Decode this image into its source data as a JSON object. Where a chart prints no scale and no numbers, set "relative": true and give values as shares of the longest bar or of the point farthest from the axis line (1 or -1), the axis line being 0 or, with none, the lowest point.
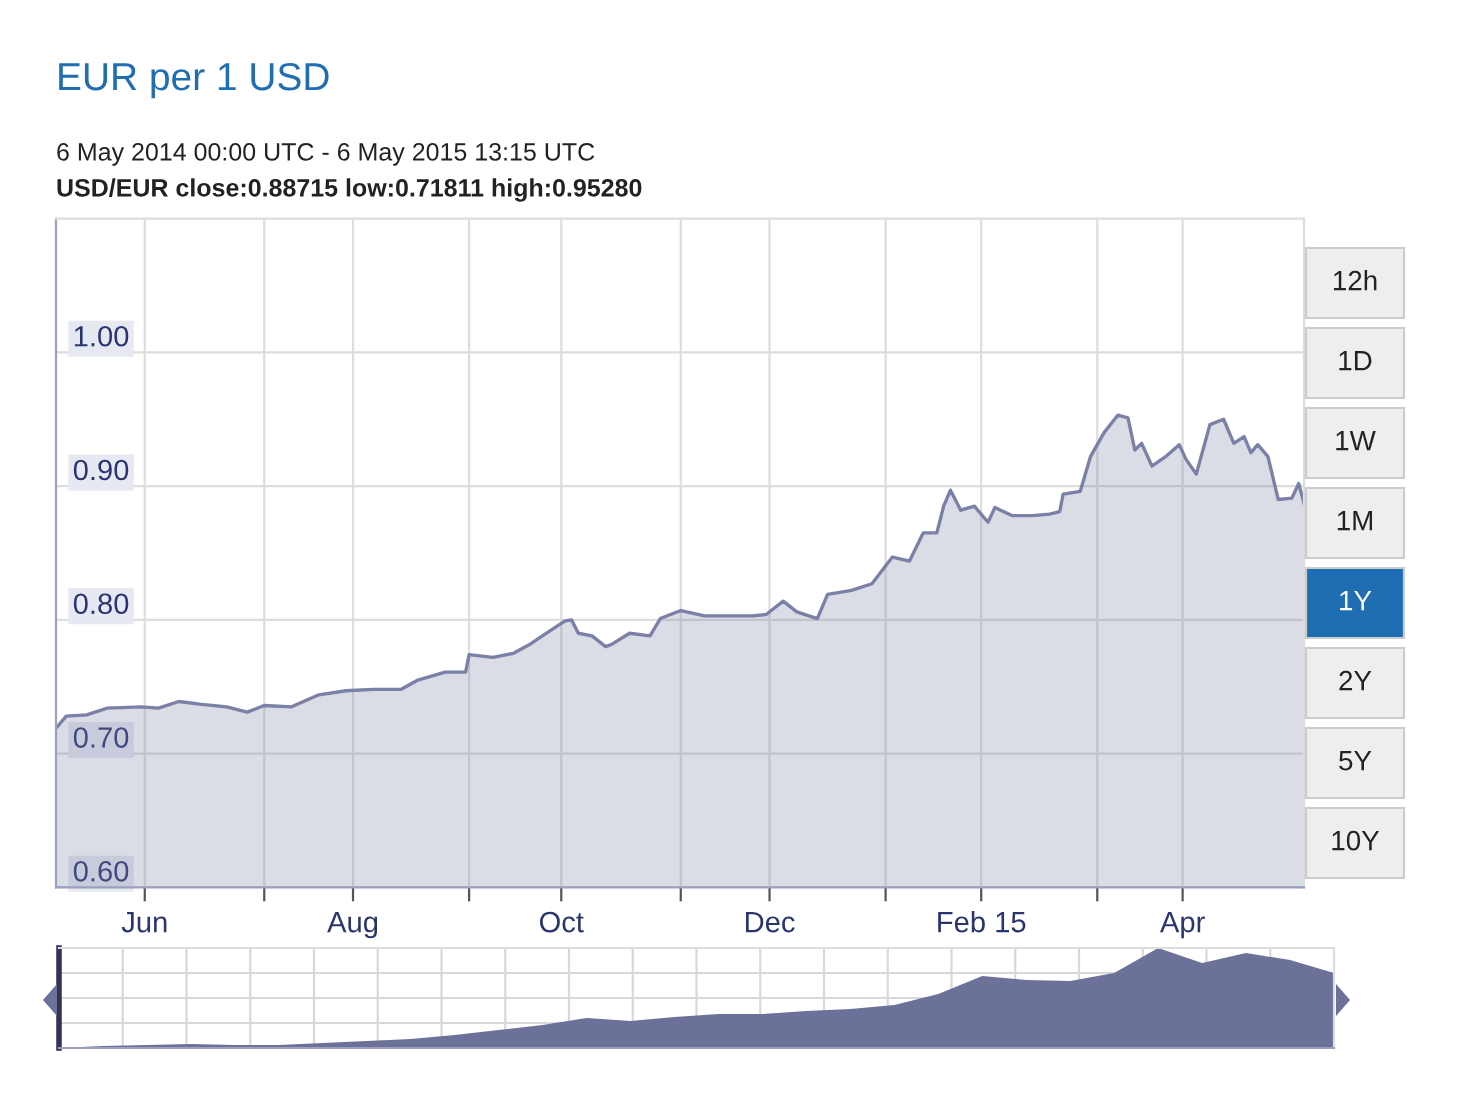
{
  "chart_data": [
    {
      "type": "area",
      "title": "EUR per 1 USD",
      "subtitle": "6 May 2014 00:00 UTC - 6 May 2015 13:15 UTC",
      "annotations": [
        "USD/EUR close:0.88715 low:0.71811 high:0.95280",
        "12h",
        "1D",
        "1W",
        "1M",
        "1Y",
        "2Y",
        "5Y",
        "10Y"
      ],
      "x": [
        "2014-05-06",
        "2014-05-09",
        "2014-05-15",
        "2014-05-21",
        "2014-05-31",
        "2014-06-05",
        "2014-06-11",
        "2014-06-17",
        "2014-06-25",
        "2014-07-01",
        "2014-07-06",
        "2014-07-14",
        "2014-07-22",
        "2014-07-30",
        "2014-08-07",
        "2014-08-15",
        "2014-08-20",
        "2014-08-28",
        "2014-09-03",
        "2014-09-04",
        "2014-09-11",
        "2014-09-17",
        "2014-09-22",
        "2014-09-26",
        "2014-10-02",
        "2014-10-04",
        "2014-10-06",
        "2014-10-10",
        "2014-10-14",
        "2014-10-16",
        "2014-10-21",
        "2014-10-27",
        "2014-10-30",
        "2014-11-05",
        "2014-11-12",
        "2014-11-26",
        "2014-11-30",
        "2014-12-05",
        "2014-12-09",
        "2014-12-15",
        "2014-12-18",
        "2014-12-25",
        "2014-12-31",
        "2015-01-06",
        "2015-01-11",
        "2015-01-15",
        "2015-01-19",
        "2015-01-21",
        "2015-01-23",
        "2015-01-26",
        "2015-01-30",
        "2015-02-03",
        "2015-02-05",
        "2015-02-10",
        "2015-02-16",
        "2015-02-21",
        "2015-02-24",
        "2015-02-25",
        "2015-03-02",
        "2015-03-05",
        "2015-03-09",
        "2015-03-13",
        "2015-03-16",
        "2015-03-18",
        "2015-03-20",
        "2015-03-23",
        "2015-03-27",
        "2015-03-31",
        "2015-04-02",
        "2015-04-05",
        "2015-04-09",
        "2015-04-13",
        "2015-04-16",
        "2015-04-19",
        "2015-04-21",
        "2015-04-23",
        "2015-04-26",
        "2015-04-29",
        "2015-05-03",
        "2015-05-05",
        "2015-05-06T13:15"
      ],
      "series": [
        {
          "color": "#7a80a6",
          "values": [
            0.719,
            0.728,
            0.729,
            0.734,
            0.735,
            0.734,
            0.739,
            0.737,
            0.735,
            0.731,
            0.736,
            0.735,
            0.744,
            0.747,
            0.748,
            0.748,
            0.755,
            0.761,
            0.761,
            0.774,
            0.772,
            0.775,
            0.782,
            0.789,
            0.799,
            0.8,
            0.79,
            0.788,
            0.78,
            0.782,
            0.79,
            0.788,
            0.801,
            0.807,
            0.803,
            0.803,
            0.804,
            0.814,
            0.806,
            0.801,
            0.819,
            0.822,
            0.827,
            0.847,
            0.844,
            0.865,
            0.865,
            0.885,
            0.897,
            0.882,
            0.885,
            0.873,
            0.884,
            0.878,
            0.878,
            0.879,
            0.881,
            0.894,
            0.896,
            0.922,
            0.94,
            0.953,
            0.951,
            0.927,
            0.932,
            0.915,
            0.922,
            0.931,
            0.92,
            0.909,
            0.946,
            0.95,
            0.932,
            0.937,
            0.925,
            0.931,
            0.922,
            0.89,
            0.891,
            0.902,
            0.887
          ]
        }
      ],
      "xlim": [
        "2014-05-06",
        "2015-05-06T13:15"
      ],
      "xticks": [
        {
          "value": "2014-06-01",
          "label": "Jun"
        },
        {
          "value": "2014-07-06",
          "label": null
        },
        {
          "value": "2014-08-01",
          "label": "Aug"
        },
        {
          "value": "2014-09-04",
          "label": null
        },
        {
          "value": "2014-10-01",
          "label": "Oct"
        },
        {
          "value": "2014-11-05",
          "label": null
        },
        {
          "value": "2014-12-01",
          "label": "Dec"
        },
        {
          "value": "2015-01-04",
          "label": null
        },
        {
          "value": "2015-02-01",
          "label": "Feb 15"
        },
        {
          "value": "2015-03-07",
          "label": null
        },
        {
          "value": "2015-04-01",
          "label": "Apr"
        }
      ],
      "ylim": [
        0.6,
        1.1
      ],
      "yticks": [
        {
          "value": 0.6,
          "label": "0.60"
        },
        {
          "value": 0.7,
          "label": "0.70"
        },
        {
          "value": 0.8,
          "label": "0.80"
        },
        {
          "value": 0.9,
          "label": "0.90"
        },
        {
          "value": 1.0,
          "label": "1.00"
        }
      ],
      "grid": true
    },
    {
      "type": "area",
      "relative": true,
      "tick_labels": false,
      "grid": true,
      "categories": [
        null,
        null,
        null,
        null,
        null,
        null,
        null,
        null,
        null,
        null,
        null,
        null,
        null,
        null,
        null,
        null,
        null,
        null,
        null,
        null,
        null,
        null,
        null,
        null,
        null,
        null,
        null,
        null,
        null,
        null
      ],
      "series": [
        {
          "color": "#6b7199",
          "values": [
            0,
            0.02,
            0.03,
            0.04,
            0.03,
            0.03,
            0.05,
            0.07,
            0.09,
            0.13,
            0.18,
            0.23,
            0.3,
            0.27,
            0.31,
            0.34,
            0.34,
            0.37,
            0.39,
            0.43,
            0.54,
            0.72,
            0.68,
            0.67,
            0.75,
            1,
            0.85,
            0.95,
            0.88,
            0.75
          ]
        }
      ]
    }
  ]
}
